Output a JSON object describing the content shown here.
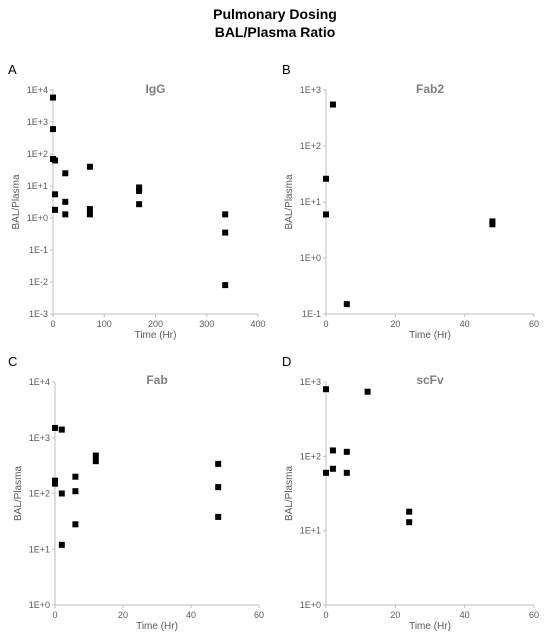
{
  "figure": {
    "title_line1": "Pulmonary Dosing",
    "title_line2": "BAL/Plasma Ratio"
  },
  "chart_data": [
    {
      "type": "scatter",
      "panel": "A",
      "title": "IgG",
      "xlabel": "Time (Hr)",
      "ylabel": "BAL/Plasma",
      "xlim": [
        0,
        400
      ],
      "xticks": [
        0,
        100,
        200,
        300,
        400
      ],
      "y_scale": "log",
      "ylim": [
        0.001,
        10000
      ],
      "yticks": [
        "1E-3",
        "1E-2",
        "1E-1",
        "1E+0",
        "1E+1",
        "1E+2",
        "1E+3",
        "1E+4"
      ],
      "points": [
        {
          "x": 0,
          "y": 5800
        },
        {
          "x": 0,
          "y": 600
        },
        {
          "x": 0,
          "y": 70
        },
        {
          "x": 4,
          "y": 63
        },
        {
          "x": 4,
          "y": 5.5
        },
        {
          "x": 4,
          "y": 1.8
        },
        {
          "x": 24,
          "y": 25
        },
        {
          "x": 24,
          "y": 3.2
        },
        {
          "x": 24,
          "y": 1.3
        },
        {
          "x": 72,
          "y": 40
        },
        {
          "x": 72,
          "y": 1.9
        },
        {
          "x": 72,
          "y": 1.3
        },
        {
          "x": 168,
          "y": 9
        },
        {
          "x": 168,
          "y": 7
        },
        {
          "x": 168,
          "y": 2.7
        },
        {
          "x": 336,
          "y": 1.3
        },
        {
          "x": 336,
          "y": 0.35
        },
        {
          "x": 336,
          "y": 0.008
        }
      ]
    },
    {
      "type": "scatter",
      "panel": "B",
      "title": "Fab2",
      "xlabel": "Time (Hr)",
      "ylabel": "BAL/Plasma",
      "xlim": [
        0,
        60
      ],
      "xticks": [
        0,
        20,
        40,
        60
      ],
      "y_scale": "log",
      "ylim": [
        0.1,
        1000
      ],
      "yticks": [
        "1E-1",
        "1E+0",
        "1E+1",
        "1E+2",
        "1E+3"
      ],
      "points": [
        {
          "x": 0,
          "y": 26
        },
        {
          "x": 0,
          "y": 6
        },
        {
          "x": 2,
          "y": 550
        },
        {
          "x": 6,
          "y": 0.15
        },
        {
          "x": 48,
          "y": 4.5
        },
        {
          "x": 48,
          "y": 4.0
        }
      ]
    },
    {
      "type": "scatter",
      "panel": "C",
      "title": "Fab",
      "xlabel": "Time (Hr)",
      "ylabel": "BAL/Plasma",
      "xlim": [
        0,
        60
      ],
      "xticks": [
        0,
        20,
        40,
        60
      ],
      "y_scale": "log",
      "ylim": [
        1,
        10000
      ],
      "yticks": [
        "1E+0",
        "1E+1",
        "1E+2",
        "1E+3",
        "1E+4"
      ],
      "points": [
        {
          "x": 0,
          "y": 1500
        },
        {
          "x": 0,
          "y": 170
        },
        {
          "x": 0,
          "y": 150
        },
        {
          "x": 2,
          "y": 1400
        },
        {
          "x": 2,
          "y": 100
        },
        {
          "x": 2,
          "y": 12
        },
        {
          "x": 6,
          "y": 200
        },
        {
          "x": 6,
          "y": 110
        },
        {
          "x": 6,
          "y": 28
        },
        {
          "x": 12,
          "y": 480
        },
        {
          "x": 12,
          "y": 380
        },
        {
          "x": 48,
          "y": 340
        },
        {
          "x": 48,
          "y": 130
        },
        {
          "x": 48,
          "y": 38
        }
      ]
    },
    {
      "type": "scatter",
      "panel": "D",
      "title": "scFv",
      "xlabel": "Time (Hr)",
      "ylabel": "BAL/Plasma",
      "xlim": [
        0,
        60
      ],
      "xticks": [
        0,
        20,
        40,
        60
      ],
      "y_scale": "log",
      "ylim": [
        1,
        1000
      ],
      "yticks": [
        "1E+0",
        "1E+1",
        "1E+2",
        "1E+3"
      ],
      "points": [
        {
          "x": 0,
          "y": 800
        },
        {
          "x": 0,
          "y": 60
        },
        {
          "x": 2,
          "y": 120
        },
        {
          "x": 2,
          "y": 68
        },
        {
          "x": 6,
          "y": 115
        },
        {
          "x": 6,
          "y": 60
        },
        {
          "x": 12,
          "y": 740
        },
        {
          "x": 24,
          "y": 18
        },
        {
          "x": 24,
          "y": 13
        }
      ]
    }
  ]
}
